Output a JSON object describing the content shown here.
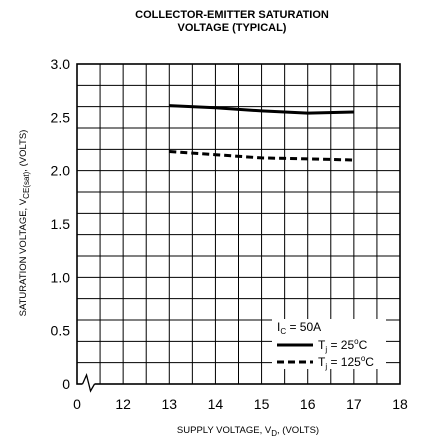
{
  "chart_data": {
    "type": "line",
    "title_line1": "COLLECTOR-EMITTER SATURATION",
    "title_line2": "VOLTAGE (TYPICAL)",
    "xlabel": {
      "prefix": "SUPPLY VOLTAGE, V",
      "sub": "D",
      "suffix": ", (VOLTS)"
    },
    "ylabel": {
      "prefix": "SATURATION VOLTAGE, V",
      "sub": "CE(sat)",
      "suffix": ", (VOLTS)"
    },
    "x_ticks": [
      "0",
      "12",
      "13",
      "14",
      "15",
      "16",
      "17",
      "18"
    ],
    "x_tick_values": [
      11,
      12,
      13,
      14,
      15,
      16,
      17,
      18
    ],
    "xlim": [
      11,
      18
    ],
    "x_axis_break": true,
    "y_ticks": [
      "0",
      "0.5",
      "1.0",
      "1.5",
      "2.0",
      "2.5",
      "3.0"
    ],
    "y_tick_values": [
      0,
      0.5,
      1.0,
      1.5,
      2.0,
      2.5,
      3.0
    ],
    "ylim": [
      0,
      3.0
    ],
    "grid": true,
    "legend": {
      "placement": "bottom-right",
      "header": {
        "prefix": "I",
        "sub": "C",
        "suffix": " = 50A"
      }
    },
    "series": [
      {
        "label_prefix": "T",
        "label_sub": "j",
        "label_suffix": " = 25",
        "label_deg": "o",
        "label_unit": "C",
        "style": "solid",
        "color": "#000000",
        "x": [
          13,
          14,
          15,
          16,
          17
        ],
        "y": [
          2.61,
          2.59,
          2.56,
          2.54,
          2.55
        ]
      },
      {
        "label_prefix": "T",
        "label_sub": "j",
        "label_suffix": " = 125",
        "label_deg": "o",
        "label_unit": "C",
        "style": "dashed",
        "color": "#000000",
        "x": [
          13,
          14,
          15,
          16,
          17
        ],
        "y": [
          2.18,
          2.15,
          2.12,
          2.11,
          2.1
        ]
      }
    ]
  }
}
